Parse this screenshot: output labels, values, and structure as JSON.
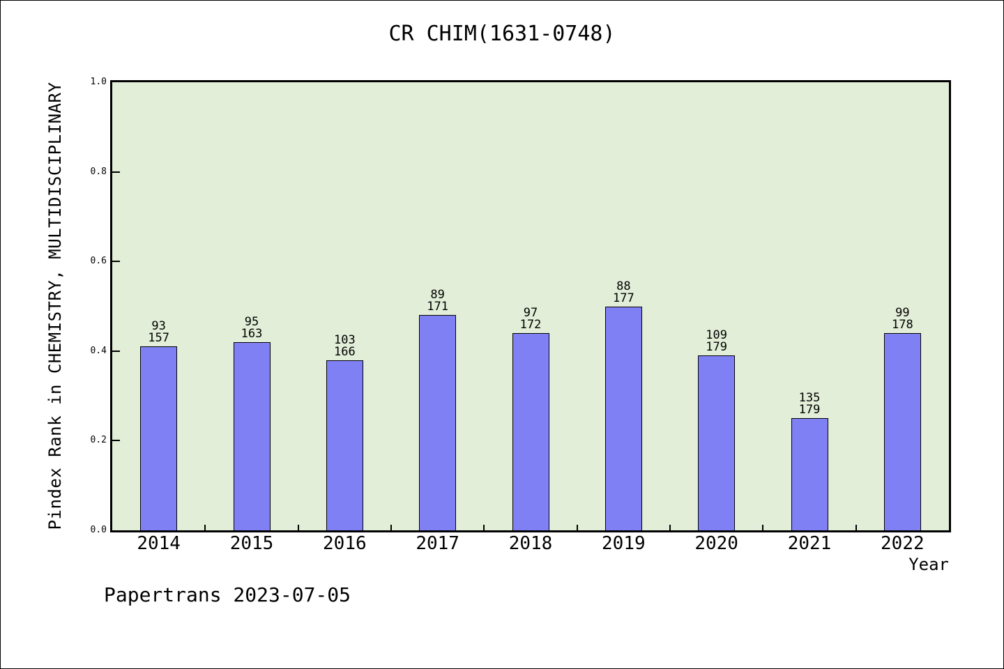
{
  "title": "CR CHIM(1631-0748)",
  "footer": "Papertrans 2023-07-05",
  "colors": {
    "bar_fill": "#8080f5",
    "bar_edge": "#000000",
    "plot_background": "#e2eed8",
    "page_background": "#ffffff",
    "text": "#000000"
  },
  "chart_data": {
    "type": "bar",
    "title": "CR CHIM(1631-0748)",
    "xlabel": "Year",
    "ylabel": "Pindex Rank in CHEMISTRY, MULTIDISCIPLINARY",
    "categories": [
      "2014",
      "2015",
      "2016",
      "2017",
      "2018",
      "2019",
      "2020",
      "2021",
      "2022"
    ],
    "series": [
      {
        "name": "rank",
        "values": [
          93,
          95,
          103,
          89,
          97,
          88,
          109,
          135,
          99
        ]
      },
      {
        "name": "total",
        "values": [
          157,
          163,
          166,
          171,
          172,
          177,
          179,
          179,
          178
        ]
      }
    ],
    "bar_heights": [
      0.41,
      0.42,
      0.38,
      0.48,
      0.44,
      0.5,
      0.39,
      0.25,
      0.44
    ],
    "bar_label_format": "rank over total",
    "yticks": [
      "0.0",
      "0.2",
      "0.4",
      "0.6",
      "0.8",
      "1.0"
    ],
    "ylim": [
      0,
      1
    ],
    "grid": false,
    "legend": "none"
  }
}
